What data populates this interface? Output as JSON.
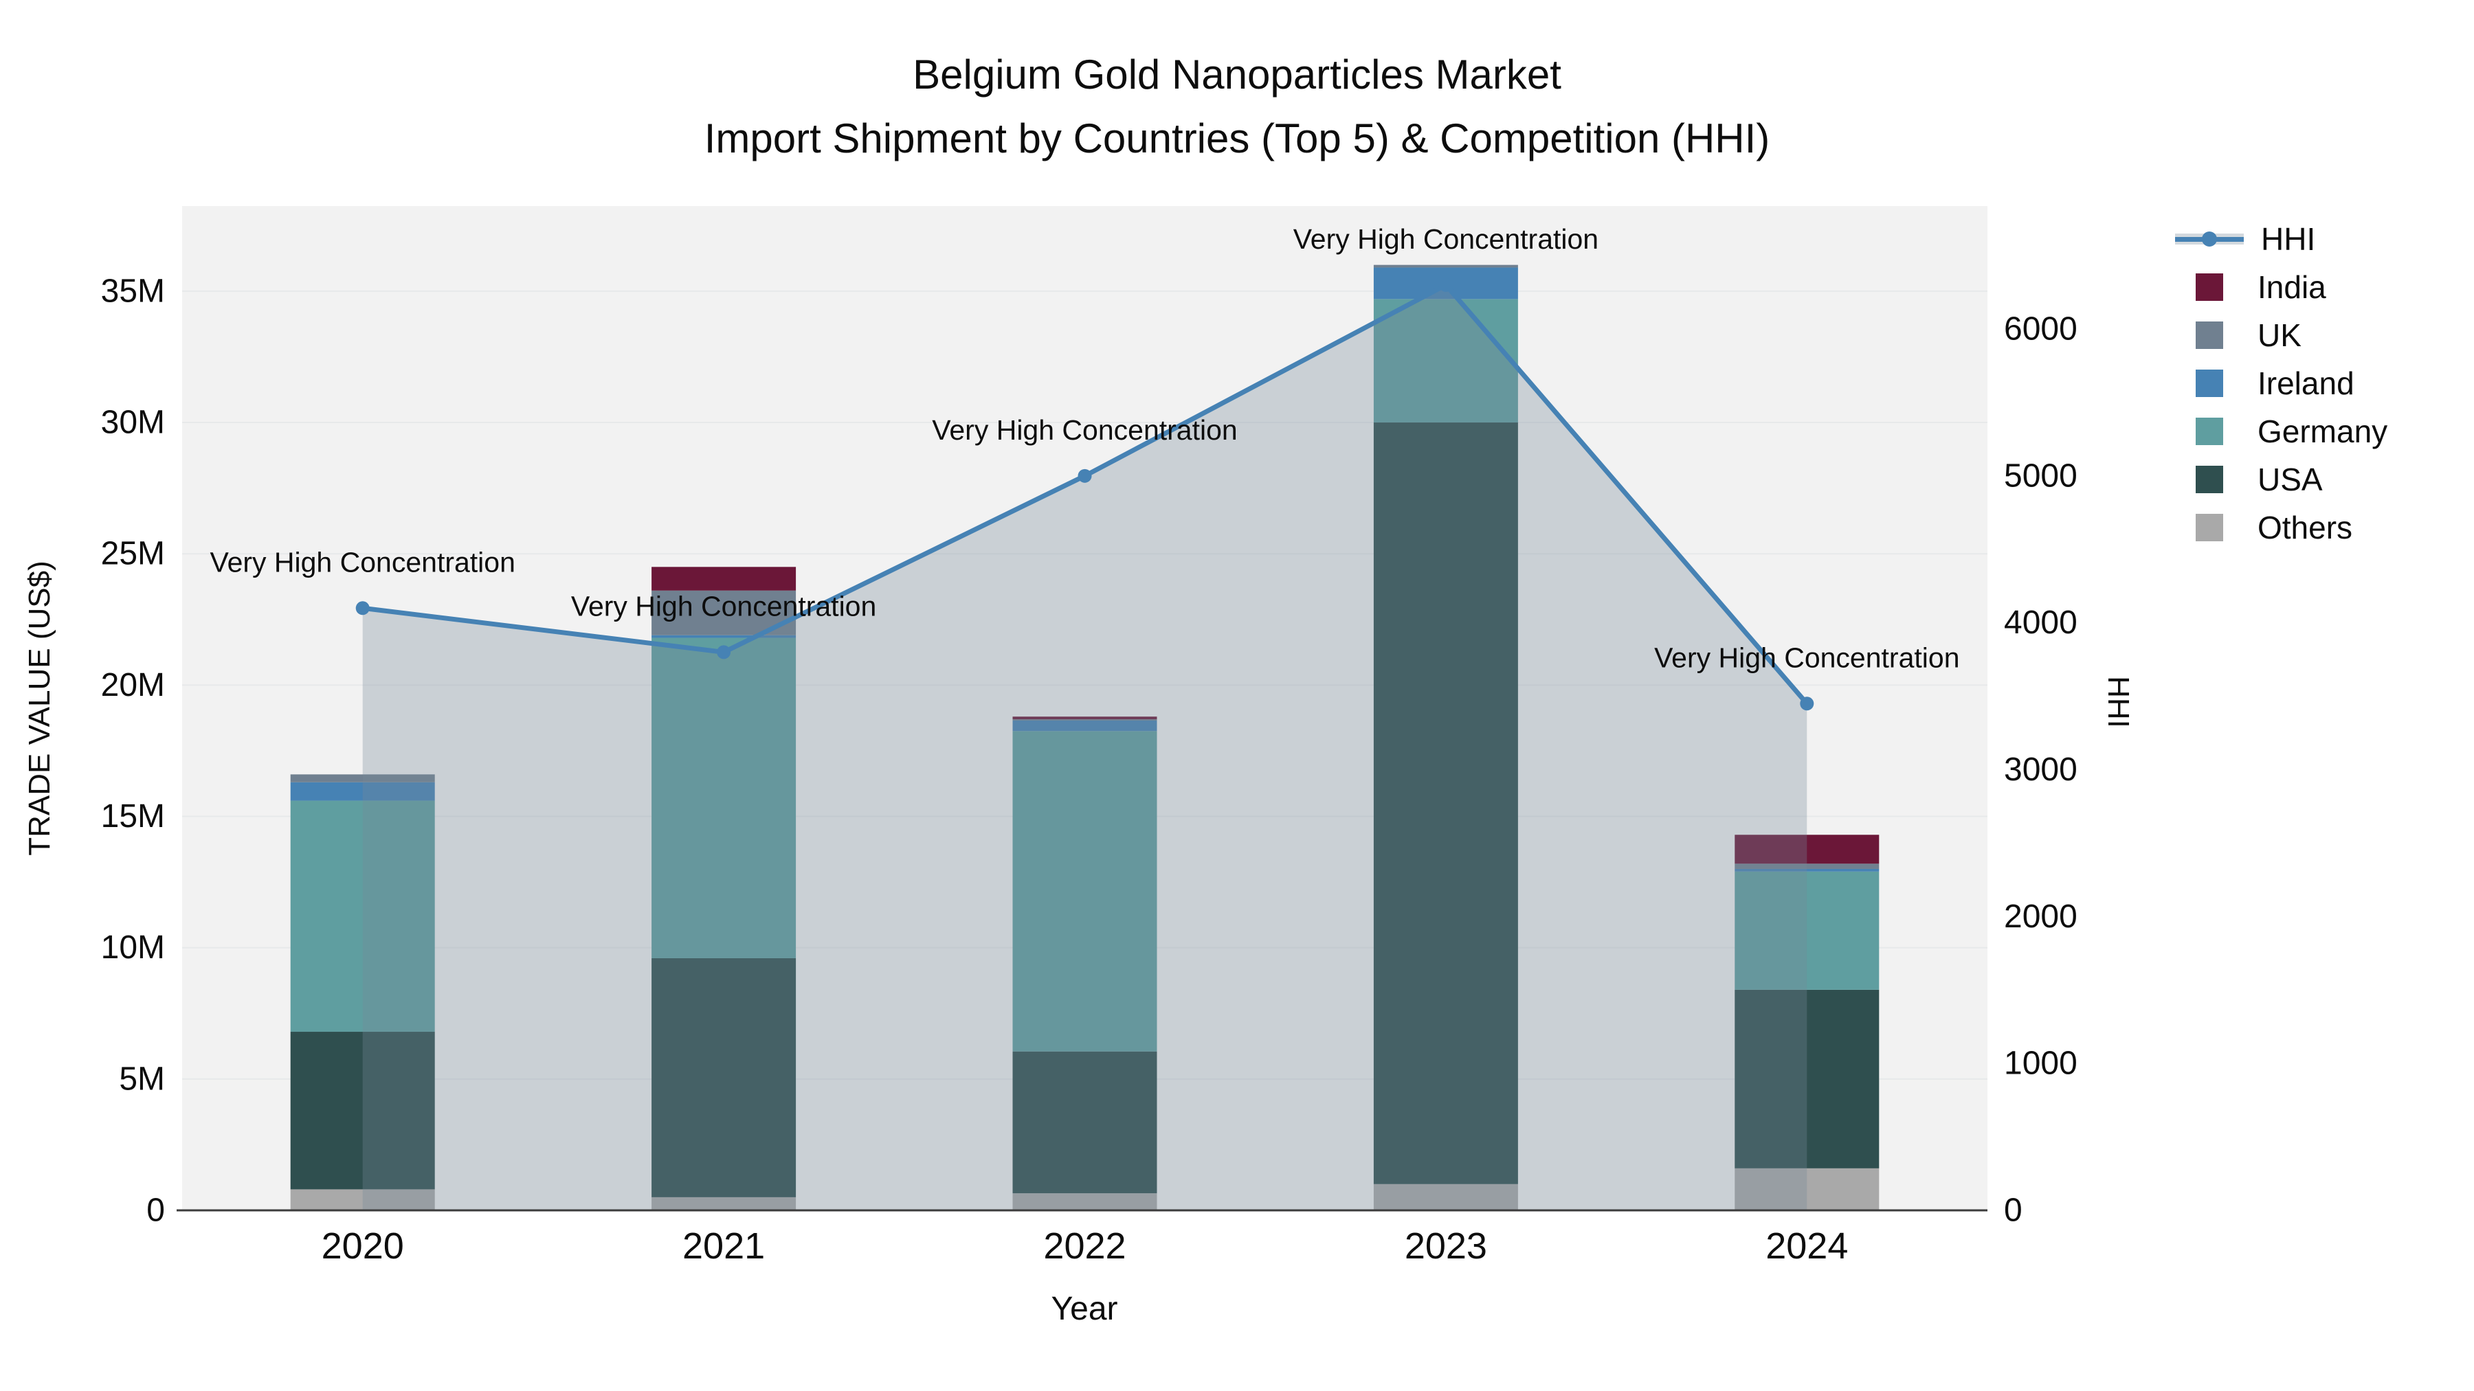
{
  "title": {
    "line1": "Belgium Gold Nanoparticles Market",
    "line2": "Import Shipment by Countries (Top 5) & Competition (HHI)"
  },
  "axes": {
    "left": {
      "title": "TRADE VALUE (US$)",
      "tick_labels": [
        "0",
        "5M",
        "10M",
        "15M",
        "20M",
        "25M",
        "30M",
        "35M"
      ],
      "tick_values_musd": [
        0,
        5,
        10,
        15,
        20,
        25,
        30,
        35
      ]
    },
    "right": {
      "title": "HHI",
      "tick_labels": [
        "0",
        "1000",
        "2000",
        "3000",
        "4000",
        "5000",
        "6000"
      ],
      "tick_values": [
        0,
        1000,
        2000,
        3000,
        4000,
        5000,
        6000
      ]
    },
    "x": {
      "title": "Year",
      "tick_labels": [
        "2020",
        "2021",
        "2022",
        "2023",
        "2024"
      ]
    }
  },
  "annotation_text": "Very High Concentration",
  "legend": {
    "items": [
      {
        "label": "HHI",
        "type": "line",
        "color": "#4682B4",
        "band_color": "rgba(119,136,153,0.32)"
      },
      {
        "label": "India",
        "type": "swatch",
        "color": "#6B1738"
      },
      {
        "label": "UK",
        "type": "swatch",
        "color": "#708090"
      },
      {
        "label": "Ireland",
        "type": "swatch",
        "color": "#4682B4"
      },
      {
        "label": "Germany",
        "type": "swatch",
        "color": "#5F9EA0"
      },
      {
        "label": "USA",
        "type": "swatch",
        "color": "#2F4F4F"
      },
      {
        "label": "Others",
        "type": "swatch",
        "color": "#A9A9A9"
      }
    ]
  },
  "colors": {
    "plot_background": "#f2f2f2",
    "gridline": "#e7e9ea",
    "zero_axis_line": "#3c3c3c",
    "hhi_line": "#4682B4",
    "hhi_area_fill": "rgba(119,136,153,0.32)",
    "text": "#0d0d0d"
  },
  "chart_data": {
    "type": "combo_stacked_bar_line",
    "categories": [
      "2020",
      "2021",
      "2022",
      "2023",
      "2024"
    ],
    "bar_unit": "million US$ (left axis, TRADE VALUE)",
    "stack_order_bottom_to_top": [
      "Others",
      "USA",
      "Germany",
      "Ireland",
      "UK",
      "India"
    ],
    "series": [
      {
        "name": "Others",
        "color": "#A9A9A9",
        "values": [
          0.8,
          0.5,
          0.65,
          1.0,
          1.6
        ]
      },
      {
        "name": "USA",
        "color": "#2F4F4F",
        "values": [
          6.0,
          9.1,
          5.4,
          29.0,
          6.8
        ]
      },
      {
        "name": "Germany",
        "color": "#5F9EA0",
        "values": [
          8.8,
          12.2,
          12.2,
          4.7,
          4.5
        ]
      },
      {
        "name": "Ireland",
        "color": "#4682B4",
        "values": [
          0.7,
          0.1,
          0.4,
          1.2,
          0.1
        ]
      },
      {
        "name": "UK",
        "color": "#708090",
        "values": [
          0.3,
          1.7,
          0.05,
          0.1,
          0.2
        ]
      },
      {
        "name": "India",
        "color": "#6B1738",
        "values": [
          0.0,
          0.9,
          0.1,
          0.0,
          1.1
        ]
      }
    ],
    "bar_totals_musd": [
      16.6,
      24.5,
      18.8,
      36.0,
      14.3
    ],
    "line": {
      "name": "HHI",
      "color": "#4682B4",
      "values": [
        4100,
        3800,
        5000,
        6300,
        3450
      ],
      "area_fill": "rgba(119,136,153,0.32)",
      "markers": true
    },
    "point_annotations": [
      "Very High Concentration",
      "Very High Concentration",
      "Very High Concentration",
      "Very High Concentration",
      "Very High Concentration"
    ],
    "ylim_left_musd": [
      0,
      38.24
    ],
    "ylim_right_hhi": [
      0,
      6837
    ],
    "grid": "horizontal, every 5M, left axis",
    "legend_position": "right"
  }
}
